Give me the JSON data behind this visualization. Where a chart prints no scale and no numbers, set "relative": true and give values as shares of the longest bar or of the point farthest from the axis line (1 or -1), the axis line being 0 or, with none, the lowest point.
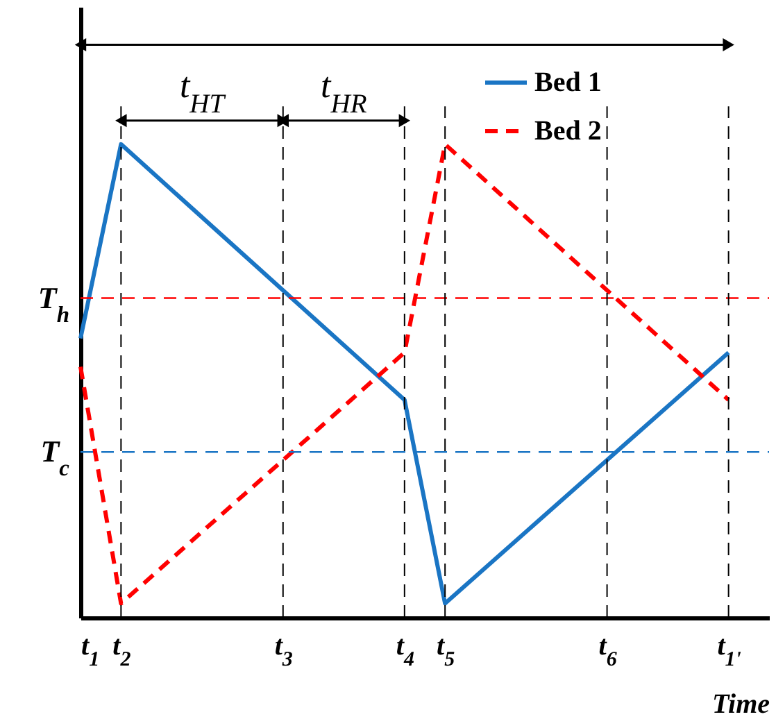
{
  "chart_data": {
    "type": "line",
    "relative": true,
    "xlabel": "Time",
    "legend": "top right",
    "marker": "none",
    "categories": [
      "t$_{1}$",
      "t$_{2}$",
      null,
      null,
      null,
      "t$_{3}$",
      null,
      null,
      "t$_{4}$",
      "t$_{5}$",
      null,
      null,
      null,
      "t$_{6}$",
      null,
      null,
      "t$_{1'}$"
    ],
    "series": [
      {
        "name": "Bed 1",
        "color": "#1a75c4",
        "line_style": "solid",
        "values": [
          0.59,
          1,
          null,
          null,
          null,
          null,
          null,
          null,
          0.46,
          0.03,
          null,
          null,
          null,
          null,
          null,
          null,
          0.56
        ]
      },
      {
        "name": "Bed 2",
        "color": "#ff0000",
        "line_style": "dashed",
        "values": [
          0.53,
          0.03,
          null,
          null,
          null,
          null,
          null,
          null,
          0.56,
          1,
          null,
          null,
          null,
          null,
          null,
          null,
          0.46
        ]
      }
    ],
    "ref_lines": [
      {
        "axis": "y",
        "value": 0.675,
        "label": "T$_{h}$",
        "color": "#ff0000",
        "line_style": "dashed"
      },
      {
        "axis": "y",
        "value": 0.35,
        "label": "T$_{c}$",
        "color": "#1a75c4",
        "line_style": "dashed"
      },
      {
        "axis": "x",
        "value": "t$_{2}$",
        "color": "#000000",
        "line_style": "dashed"
      },
      {
        "axis": "x",
        "value": "t$_{3}$",
        "color": "#000000",
        "line_style": "dashed"
      },
      {
        "axis": "x",
        "value": "t$_{4}$",
        "color": "#000000",
        "line_style": "dashed"
      },
      {
        "axis": "x",
        "value": "t$_{5}$",
        "color": "#000000",
        "line_style": "dashed"
      },
      {
        "axis": "x",
        "value": "t$_{6}$",
        "color": "#000000",
        "line_style": "dashed"
      },
      {
        "axis": "x",
        "value": "t$_{1'}$",
        "color": "#000000",
        "line_style": "dashed"
      }
    ],
    "annotations": [
      "t$_{HT}$",
      "t$_{HR}$"
    ]
  }
}
